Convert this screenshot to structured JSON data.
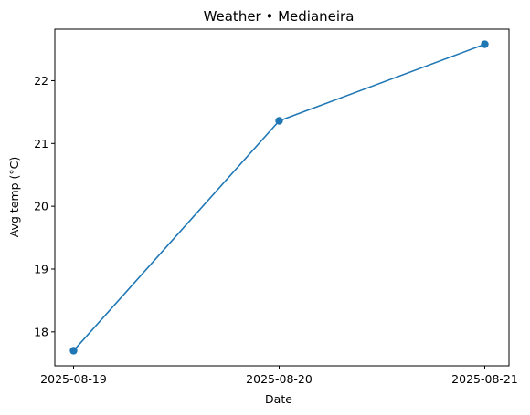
{
  "chart_data": {
    "type": "line",
    "title": "Weather • Medianeira",
    "xlabel": "Date",
    "ylabel": "Avg temp (°C)",
    "categories": [
      "2025-08-19",
      "2025-08-20",
      "2025-08-21"
    ],
    "series": [
      {
        "values": [
          17.7,
          21.36,
          22.58
        ],
        "color": "#1f77b4",
        "marker": "circle"
      }
    ],
    "yticks": [
      18,
      19,
      20,
      21,
      22
    ],
    "ylim": [
      17.46,
      22.82
    ],
    "grid": false,
    "legend": "none"
  }
}
